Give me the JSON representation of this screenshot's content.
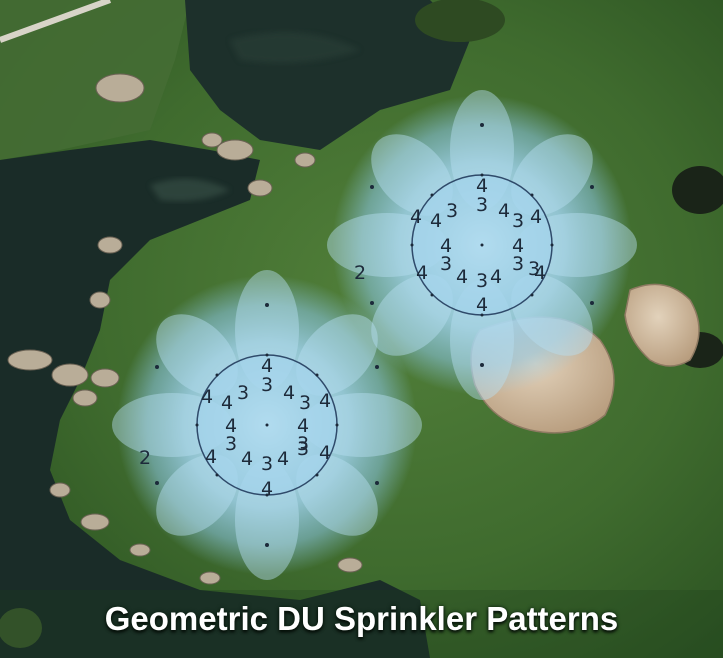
{
  "caption": "Geometric DU Sprinkler Patterns",
  "patterns": [
    {
      "ring_labels": [
        "4",
        "3",
        "4",
        "4",
        "3",
        "4",
        "4",
        "3",
        "4",
        "3",
        "4",
        "3",
        "4",
        "4",
        "3",
        "4",
        "3",
        "4",
        "4"
      ],
      "outer_label": "2"
    },
    {
      "ring_labels": [
        "4",
        "3",
        "4",
        "4",
        "3",
        "4",
        "4",
        "3",
        "4",
        "3",
        "4",
        "3",
        "4",
        "4",
        "3",
        "4",
        "3",
        "4",
        "4"
      ],
      "outer_label": "2"
    }
  ],
  "colors": {
    "grass": "#3f6b2e",
    "water": "#1c2f2a",
    "sand": "#cbb596",
    "spray": "#a9d8ee"
  }
}
